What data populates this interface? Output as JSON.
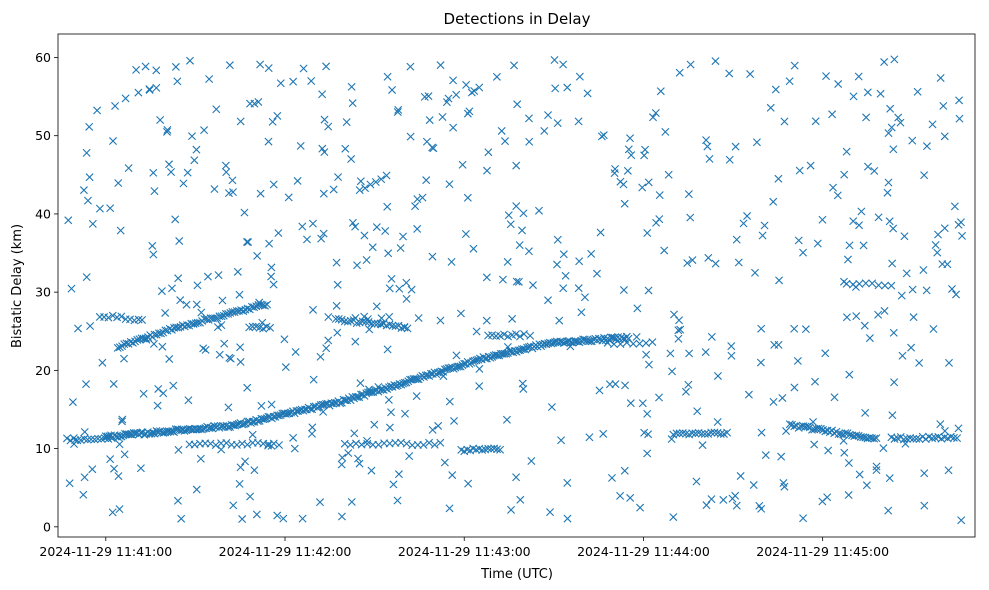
{
  "chart_data": {
    "type": "scatter",
    "title": "Detections in Delay",
    "xlabel": "Time (UTC)",
    "ylabel": "Bistatic Delay (km)",
    "x_axis": {
      "kind": "time",
      "range": [
        "2024-11-29 11:40:44",
        "2024-11-29 11:45:51"
      ],
      "ticks": [
        "2024-11-29 11:41:00",
        "2024-11-29 11:42:00",
        "2024-11-29 11:43:00",
        "2024-11-29 11:44:00",
        "2024-11-29 11:45:00"
      ]
    },
    "y_axis": {
      "range": [
        -1.3,
        63
      ],
      "ticks": [
        0,
        10,
        20,
        30,
        40,
        50,
        60
      ]
    },
    "grid": false,
    "marker": "x",
    "color": "#1f77b4",
    "tracks": [
      {
        "start": "2024-11-29 11:41:00",
        "end": "2024-11-29 11:43:55",
        "curve": [
          [
            0,
            11.5
          ],
          [
            0.25,
            13
          ],
          [
            0.45,
            16
          ],
          [
            0.55,
            18
          ],
          [
            0.72,
            21.5
          ],
          [
            0.85,
            23.5
          ],
          [
            1.0,
            24.2
          ]
        ],
        "count": 300
      },
      {
        "start": "2024-11-29 11:41:04",
        "end": "2024-11-29 11:41:54",
        "curve": [
          [
            0,
            23
          ],
          [
            0.4,
            25.5
          ],
          [
            1.0,
            28.5
          ]
        ],
        "count": 70
      },
      {
        "start": "2024-11-29 11:40:58",
        "end": "2024-11-29 11:41:11",
        "curve": [
          [
            0,
            27
          ],
          [
            1.0,
            26.5
          ]
        ],
        "count": 10
      },
      {
        "start": "2024-11-29 11:41:48",
        "end": "2024-11-29 11:41:55",
        "curve": [
          [
            0,
            25.5
          ],
          [
            1.0,
            25.5
          ]
        ],
        "count": 7
      },
      {
        "start": "2024-11-29 11:42:17",
        "end": "2024-11-29 11:42:41",
        "curve": [
          [
            0,
            26.5
          ],
          [
            1.0,
            25.5
          ]
        ],
        "count": 25
      },
      {
        "start": "2024-11-29 11:43:08",
        "end": "2024-11-29 11:43:20",
        "curve": [
          [
            0,
            24.5
          ],
          [
            1.0,
            24.5
          ]
        ],
        "count": 10
      },
      {
        "start": "2024-11-29 11:43:48",
        "end": "2024-11-29 11:44:03",
        "curve": [
          [
            0,
            23.5
          ],
          [
            1.0,
            23.5
          ]
        ],
        "count": 8
      },
      {
        "start": "2024-11-29 11:40:47",
        "end": "2024-11-29 11:41:02",
        "curve": [
          [
            0,
            11.2
          ],
          [
            1.0,
            11.2
          ]
        ],
        "count": 14
      },
      {
        "start": "2024-11-29 11:41:28",
        "end": "2024-11-29 11:41:58",
        "curve": [
          [
            0,
            10.6
          ],
          [
            1.0,
            10.6
          ]
        ],
        "count": 18
      },
      {
        "start": "2024-11-29 11:42:20",
        "end": "2024-11-29 11:42:52",
        "curve": [
          [
            0,
            10.6
          ],
          [
            1.0,
            10.6
          ]
        ],
        "count": 18
      },
      {
        "start": "2024-11-29 11:42:59",
        "end": "2024-11-29 11:43:12",
        "curve": [
          [
            0,
            9.8
          ],
          [
            1.0,
            10
          ]
        ],
        "count": 14
      },
      {
        "start": "2024-11-29 11:44:10",
        "end": "2024-11-29 11:44:28",
        "curve": [
          [
            0,
            11.8
          ],
          [
            1.0,
            12
          ]
        ],
        "count": 18
      },
      {
        "start": "2024-11-29 11:44:49",
        "end": "2024-11-29 11:45:18",
        "curve": [
          [
            0,
            13
          ],
          [
            1.0,
            11.3
          ]
        ],
        "count": 40
      },
      {
        "start": "2024-11-29 11:45:23",
        "end": "2024-11-29 11:45:45",
        "curve": [
          [
            0,
            11.3
          ],
          [
            1.0,
            11.4
          ]
        ],
        "count": 22
      },
      {
        "start": "2024-11-29 11:45:08",
        "end": "2024-11-29 11:45:23",
        "curve": [
          [
            0,
            31
          ],
          [
            1.0,
            31
          ]
        ],
        "count": 8
      },
      {
        "start": "2024-11-29 11:42:25",
        "end": "2024-11-29 11:42:34",
        "curve": [
          [
            0,
            43
          ],
          [
            1.0,
            45
          ]
        ],
        "count": 6
      }
    ],
    "clutter": {
      "count": 620,
      "x_range": [
        "2024-11-29 11:40:47",
        "2024-11-29 11:45:47"
      ],
      "y_range": [
        0.8,
        59.8
      ]
    }
  }
}
